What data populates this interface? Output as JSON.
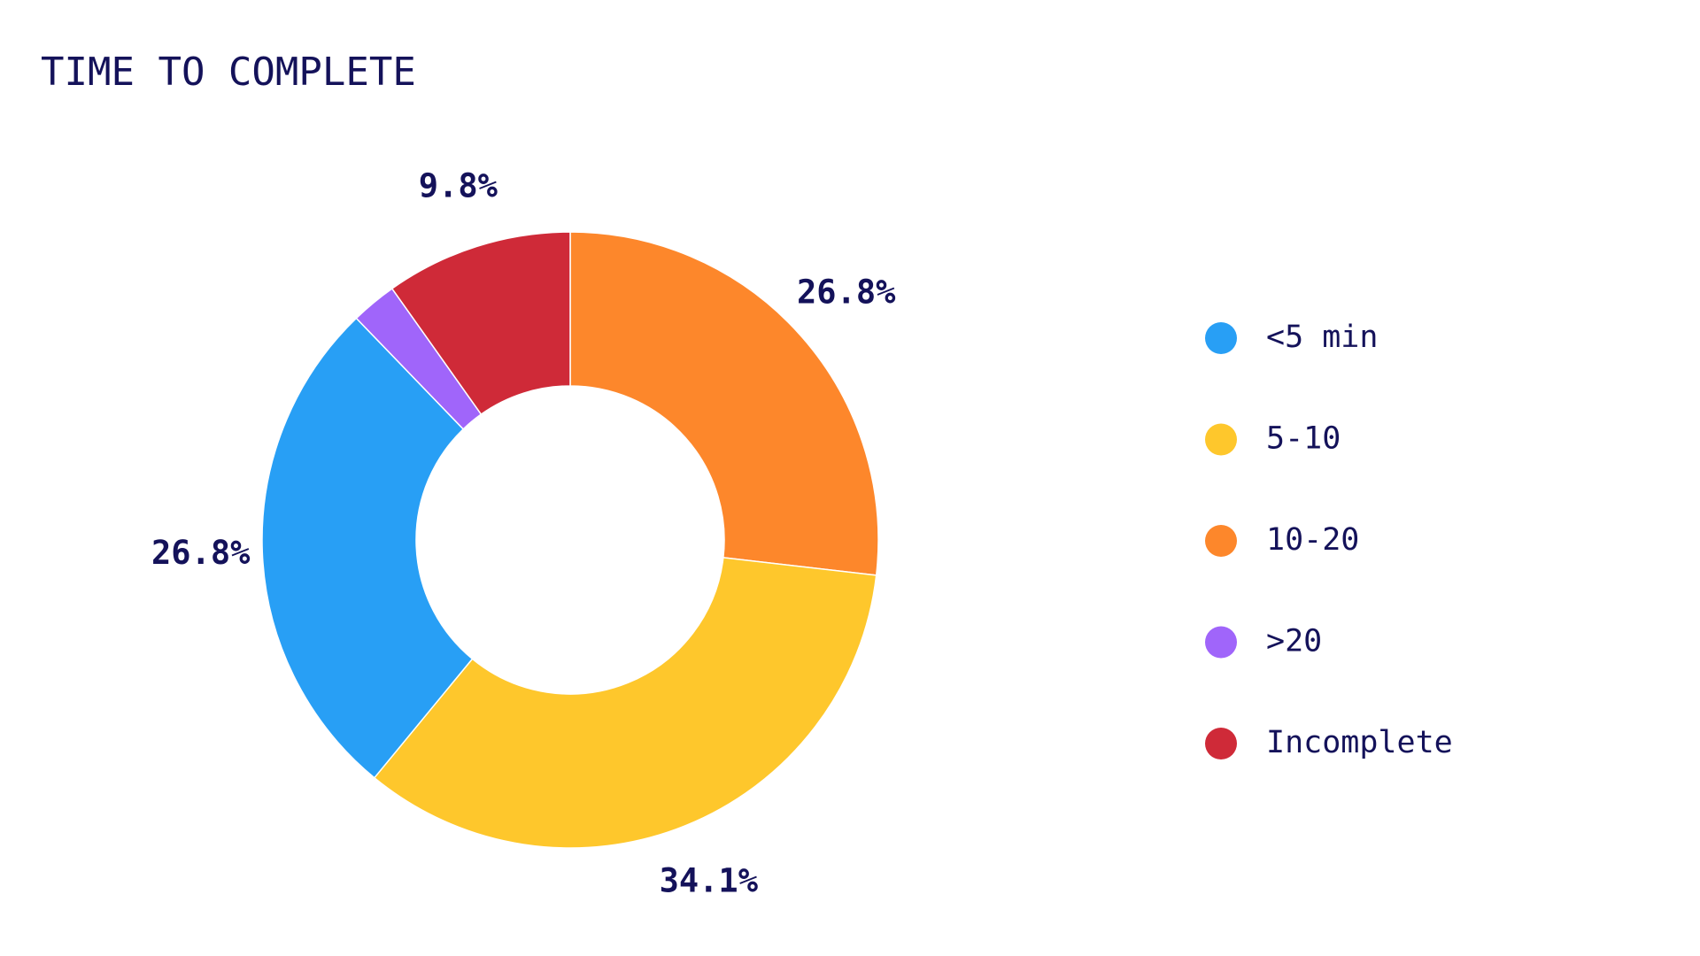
{
  "chart_data": {
    "type": "donut",
    "title": "TIME TO COMPLETE",
    "categories": [
      "<5 min",
      "5-10",
      "10-20",
      ">20",
      "Incomplete"
    ],
    "values": [
      26.8,
      34.1,
      26.8,
      2.4,
      9.8
    ],
    "value_labels": [
      "26.8%",
      "34.1%",
      "26.8%",
      null,
      "9.8%"
    ],
    "colors": [
      "#289ff5",
      "#fec72c",
      "#fd872b",
      "#a065fa",
      "#cf2a38"
    ],
    "legend": "right"
  }
}
